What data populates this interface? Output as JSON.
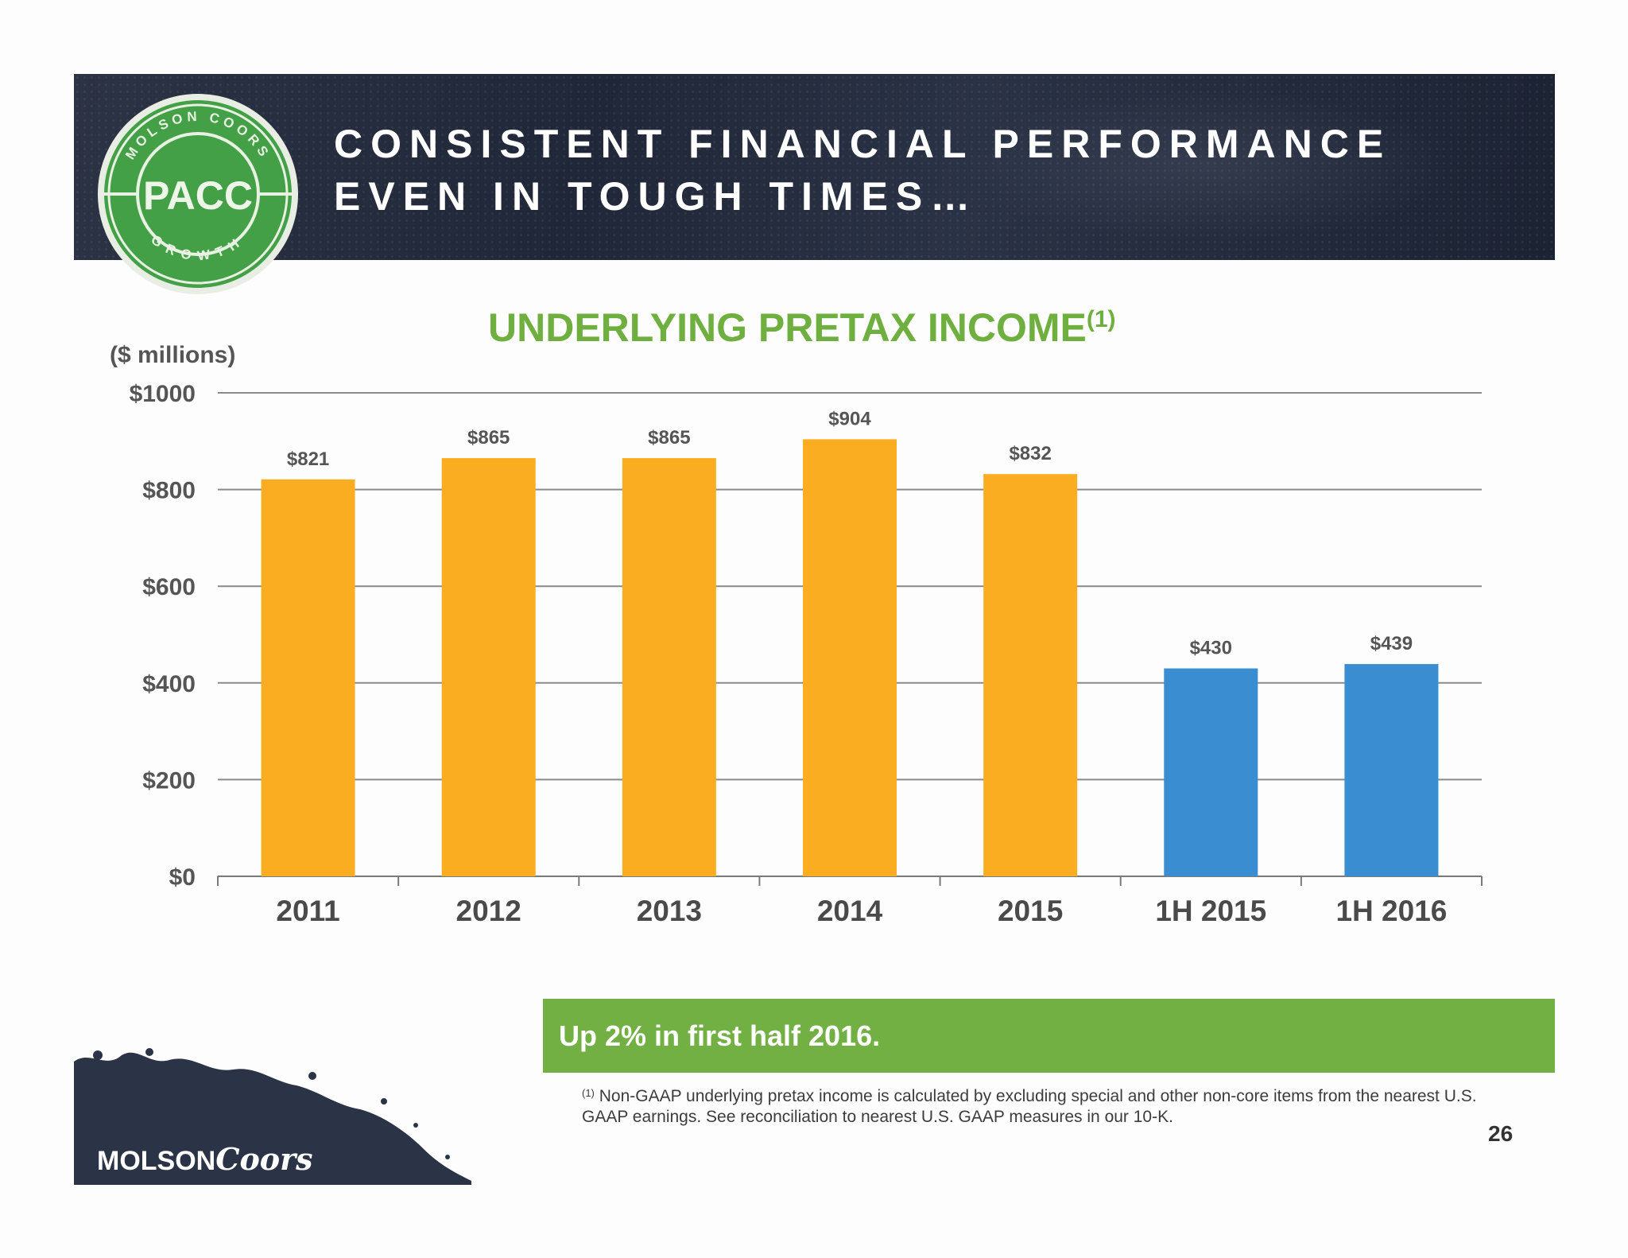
{
  "header": {
    "title_line_1": "CONSISTENT FINANCIAL PERFORMANCE",
    "title_line_2": "EVEN IN TOUGH TIMES…",
    "logo_text": "PACC",
    "logo_top_arc": "MOLSON COORS",
    "logo_bottom_arc": "GROWTH"
  },
  "chart_title": {
    "text": "UNDERLYING PRETAX INCOME",
    "superscript": "(1)"
  },
  "units_label": "($ millions)",
  "chart_data": {
    "type": "bar",
    "title": "UNDERLYING PRETAX INCOME(1)",
    "ylabel": "($ millions)",
    "xlabel": "",
    "categories": [
      "2011",
      "2012",
      "2013",
      "2014",
      "2015",
      "1H 2015",
      "1H 2016"
    ],
    "values": [
      821,
      865,
      865,
      904,
      832,
      430,
      439
    ],
    "value_labels": [
      "$821",
      "$865",
      "$865",
      "$904",
      "$832",
      "$430",
      "$439"
    ],
    "bar_colors": [
      "#fbad22",
      "#fbad22",
      "#fbad22",
      "#fbad22",
      "#fbad22",
      "#3a8dd0",
      "#3a8dd0"
    ],
    "ylim": [
      0,
      1000
    ],
    "yticks": [
      0,
      200,
      400,
      600,
      800,
      1000
    ],
    "ytick_labels": [
      "$0",
      "$200",
      "$400",
      "$600",
      "$800",
      "$1000"
    ],
    "grid": true,
    "legend": "none"
  },
  "callout": {
    "text": "Up 2% in first half 2016.",
    "color": "#72b044"
  },
  "footnote": {
    "marker": "(1)",
    "text": " Non-GAAP underlying pretax income is calculated by excluding special and other non-core items from the nearest U.S. GAAP earnings. See reconciliation to nearest U.S. GAAP measures in our 10-K."
  },
  "page_number": "26",
  "footer_brand": {
    "name_part_1": "MOLSON",
    "name_part_2": "Coors"
  },
  "colors": {
    "banner": "#232b3c",
    "accent_green": "#6eaf3f",
    "bar_annual": "#fbad22",
    "bar_half_year": "#3a8dd0"
  }
}
